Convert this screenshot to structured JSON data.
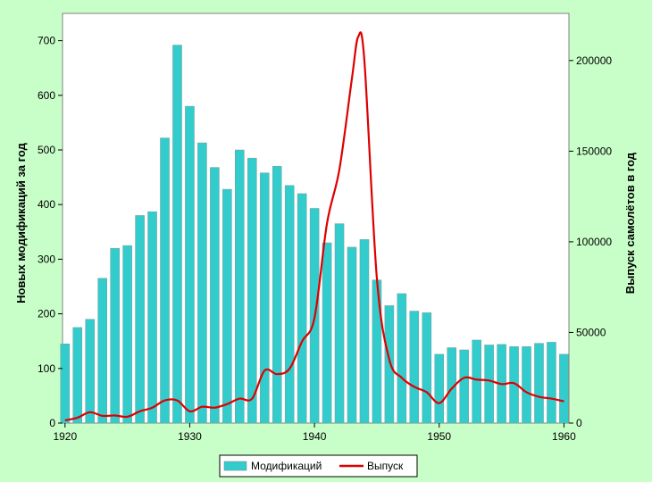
{
  "chart_data": {
    "type": "bar",
    "title": "",
    "xlabel": "",
    "ylabel": "Новых модификаций за год",
    "y2label": "Выпуск самолётов в год",
    "x_ticks": [
      "1920",
      "1930",
      "1940",
      "1950",
      "1960"
    ],
    "y_ticks": [
      "0",
      "100",
      "200",
      "300",
      "400",
      "500",
      "600",
      "700"
    ],
    "y2_ticks": [
      "0",
      "50000",
      "100000",
      "150000",
      "200000"
    ],
    "xlim": [
      1919.8,
      1960.4
    ],
    "ylim": [
      0,
      750
    ],
    "y2lim": [
      0,
      226000
    ],
    "grid": false,
    "legend_position": "bottom",
    "colors": {
      "bars": "#33cccc",
      "line": "#dd0000",
      "plot_bg": "#ffffff"
    },
    "series": [
      {
        "name": "Модификаций",
        "type": "bar",
        "axis": "left",
        "x": [
          1920,
          1921,
          1922,
          1923,
          1924,
          1925,
          1926,
          1927,
          1928,
          1929,
          1930,
          1931,
          1932,
          1933,
          1934,
          1935,
          1936,
          1937,
          1938,
          1939,
          1940,
          1941,
          1942,
          1943,
          1944,
          1945,
          1946,
          1947,
          1948,
          1949,
          1950,
          1951,
          1952,
          1953,
          1954,
          1955,
          1956,
          1957,
          1958,
          1959,
          1960
        ],
        "values": [
          145,
          175,
          190,
          265,
          320,
          325,
          380,
          387,
          522,
          692,
          580,
          513,
          468,
          428,
          500,
          485,
          458,
          470,
          435,
          420,
          393,
          330,
          365,
          322,
          336,
          262,
          215,
          237,
          205,
          202,
          126,
          138,
          134,
          152,
          143,
          144,
          140,
          140,
          146,
          148,
          126
        ]
      },
      {
        "name": "Выпуск",
        "type": "line",
        "axis": "right",
        "x": [
          1920,
          1921,
          1922,
          1923,
          1924,
          1925,
          1926,
          1927,
          1928,
          1929,
          1930,
          1931,
          1932,
          1933,
          1934,
          1935,
          1936,
          1937,
          1938,
          1939,
          1940,
          1941,
          1942,
          1943,
          1943.5,
          1944,
          1945,
          1946,
          1947,
          1948,
          1949,
          1950,
          1951,
          1952,
          1953,
          1954,
          1955,
          1956,
          1957,
          1958,
          1959,
          1960
        ],
        "values": [
          1500,
          3000,
          6000,
          4000,
          4200,
          3500,
          6500,
          8500,
          12500,
          12500,
          6500,
          9000,
          8500,
          10500,
          13500,
          13500,
          29000,
          27000,
          30000,
          45000,
          58000,
          110000,
          140000,
          190000,
          213000,
          200000,
          80000,
          35000,
          25000,
          20000,
          17000,
          11000,
          19000,
          25000,
          24000,
          23500,
          21500,
          22000,
          17000,
          14500,
          13500,
          12000
        ]
      }
    ]
  }
}
